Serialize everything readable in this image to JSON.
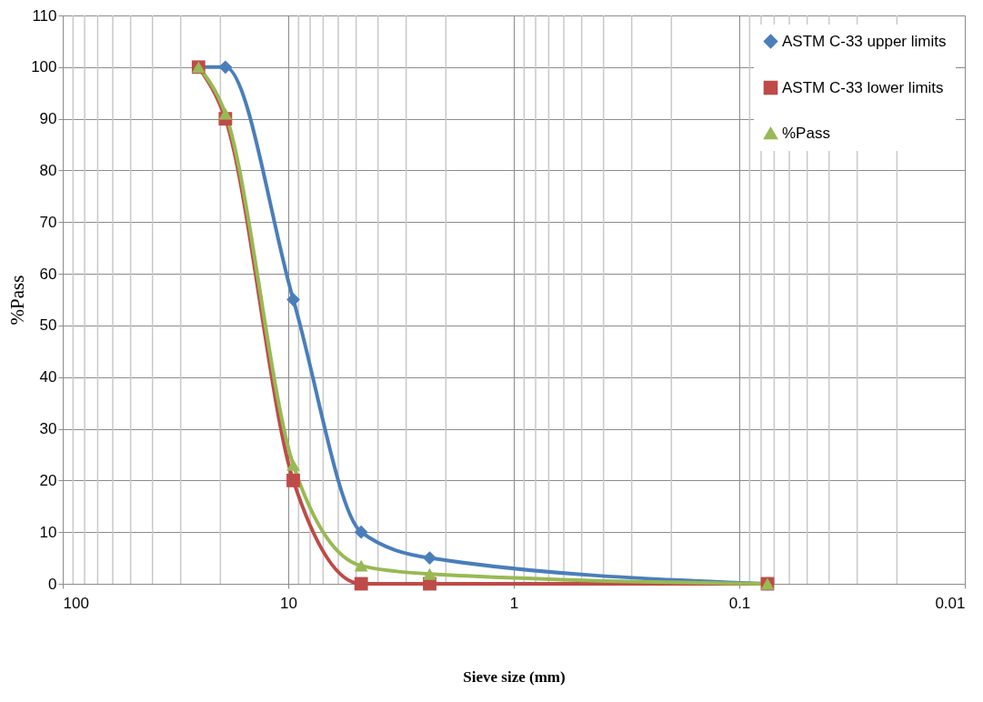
{
  "chart_data": {
    "type": "line",
    "xlabel": "Sieve size (mm)",
    "ylabel": "%Pass",
    "log": "x",
    "xlim": [
      100,
      0.01
    ],
    "xticks": [
      100,
      10,
      1,
      0.1,
      0.01
    ],
    "ylim": [
      0,
      110
    ],
    "yticks": [
      0,
      10,
      20,
      30,
      40,
      50,
      60,
      70,
      80,
      90,
      100,
      110
    ],
    "grid": true,
    "legend": "top right",
    "series": [
      {
        "name": "ASTM C-33 upper limits",
        "color": "#4a7ebb",
        "marker": "diamond",
        "x": [
          25,
          19,
          9.5,
          4.75,
          2.36,
          0.075
        ],
        "values": [
          100,
          100,
          55,
          10,
          5,
          0
        ]
      },
      {
        "name": "ASTM C-33 lower limits",
        "color": "#be4b48",
        "marker": "square",
        "x": [
          25,
          19,
          9.5,
          4.75,
          2.36,
          0.075
        ],
        "values": [
          100,
          90,
          20,
          0,
          0,
          0
        ]
      },
      {
        "name": "%Pass",
        "color": "#98b954",
        "marker": "triangle",
        "x": [
          25,
          19,
          9.5,
          4.75,
          2.36,
          0.075
        ],
        "values": [
          100,
          91,
          23,
          3.5,
          1.9,
          0
        ]
      }
    ]
  }
}
